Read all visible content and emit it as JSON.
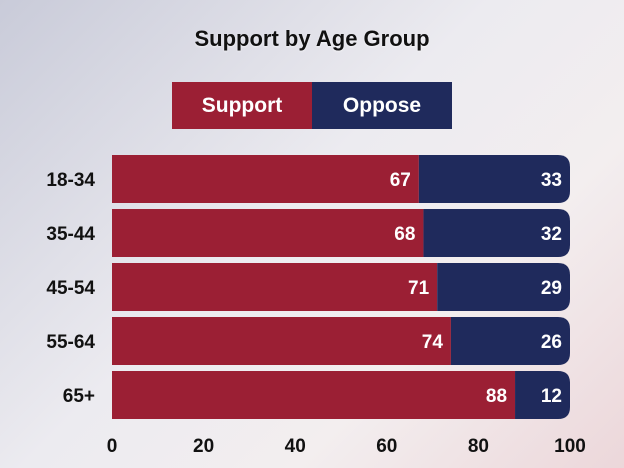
{
  "chart_data": {
    "type": "bar",
    "orientation": "horizontal",
    "stacked": true,
    "title": "Support by Age Group",
    "categories": [
      "18-34",
      "35-44",
      "45-54",
      "55-64",
      "65+"
    ],
    "series": [
      {
        "name": "Support",
        "values": [
          67,
          68,
          71,
          74,
          88
        ],
        "color": "#9b1f34"
      },
      {
        "name": "Oppose",
        "values": [
          33,
          32,
          29,
          26,
          12
        ],
        "color": "#1f2a5c"
      }
    ],
    "xlim": [
      0,
      100
    ],
    "xticks": [
      0,
      20,
      40,
      60,
      80,
      100
    ],
    "xlabel": "",
    "ylabel": "",
    "grid": false,
    "legend_position": "top"
  }
}
